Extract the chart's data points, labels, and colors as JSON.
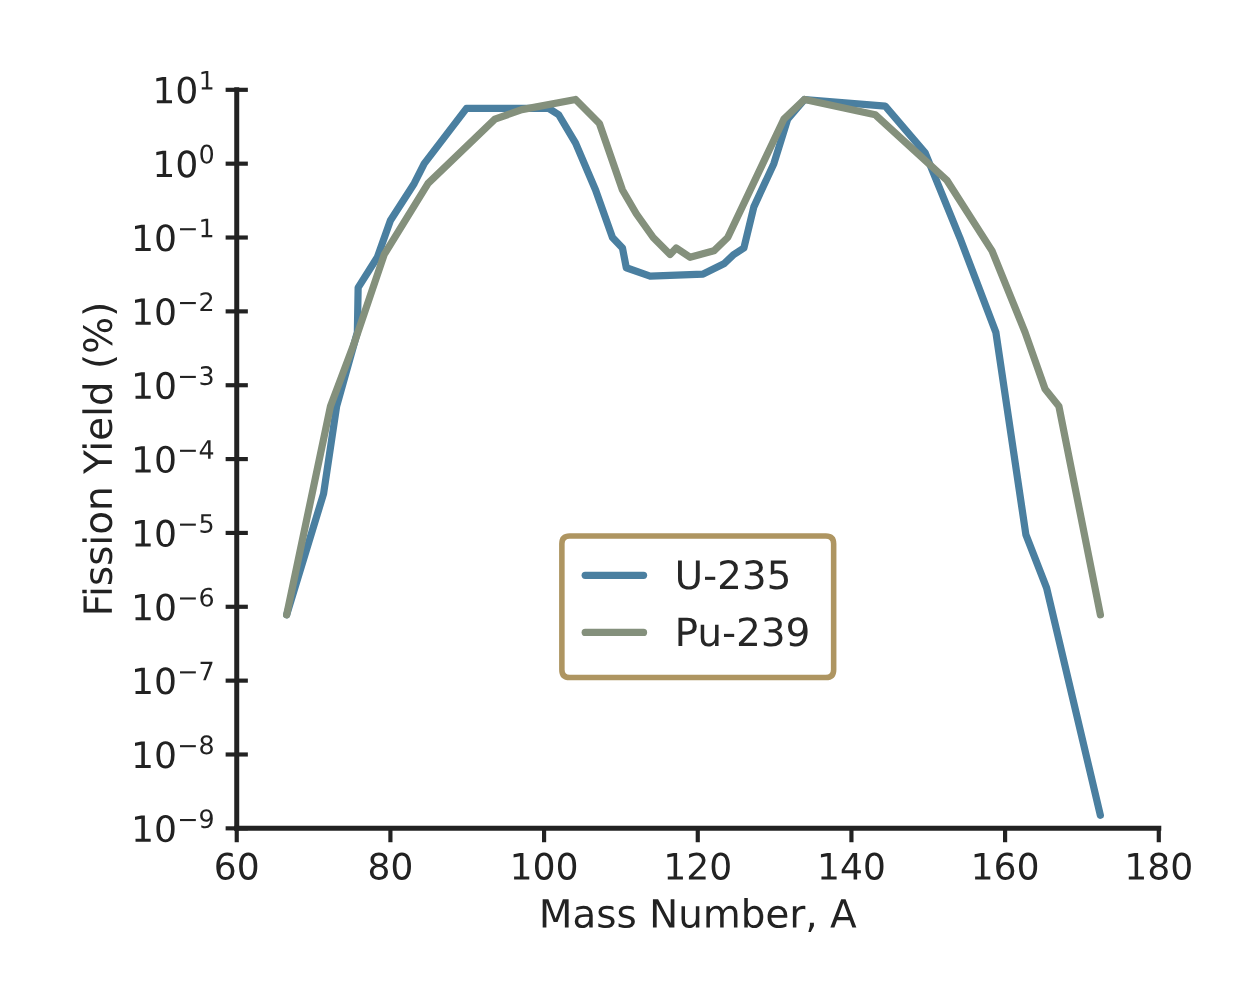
{
  "chart_data": {
    "type": "line",
    "xlabel": "Mass Number, A",
    "ylabel": "Fission Yield (%)",
    "log": "y",
    "xlim": [
      60,
      180
    ],
    "xticks": [
      60,
      80,
      100,
      120,
      140,
      160,
      180
    ],
    "ylim": [
      1e-09,
      10
    ],
    "yticks": [
      {
        "value": 1e-09,
        "label": "10$^{−9}$"
      },
      {
        "value": 1e-08,
        "label": "10$^{−8}$"
      },
      {
        "value": 1e-07,
        "label": "10$^{−7}$"
      },
      {
        "value": 1e-06,
        "label": "10$^{−6}$"
      },
      {
        "value": 1e-05,
        "label": "10$^{−5}$"
      },
      {
        "value": 0.0001,
        "label": "10$^{−4}$"
      },
      {
        "value": 0.001,
        "label": "10$^{−3}$"
      },
      {
        "value": 0.01,
        "label": "10$^{−2}$"
      },
      {
        "value": 0.1,
        "label": "10$^{−1}$"
      },
      {
        "value": 1,
        "label": "10$^{0}$"
      },
      {
        "value": 10,
        "label": "10$^{1}$"
      }
    ],
    "grid": false,
    "legend": "center",
    "marker": "none",
    "line_style": "solid",
    "series": [
      {
        "name": "U-235",
        "color": "#4a7fa0",
        "x": [
          66.5,
          71.3,
          73.0,
          75.7,
          75.8,
          78.3,
          80.0,
          83.1,
          84.4,
          89.9,
          100.6,
          101.9,
          104.1,
          106.7,
          108.9,
          110.2,
          110.7,
          113.8,
          120.7,
          123.4,
          124.7,
          126.0,
          127.3,
          129.9,
          131.7,
          133.9,
          144.4,
          149.6,
          154.1,
          158.8,
          162.7,
          165.4,
          172.4
        ],
        "values": [
          7.8e-07,
          3.4e-05,
          0.00052,
          0.0052,
          0.021,
          0.054,
          0.17,
          0.54,
          1.0,
          5.6,
          5.6,
          4.6,
          1.9,
          0.44,
          0.1,
          0.072,
          0.039,
          0.03,
          0.032,
          0.044,
          0.059,
          0.072,
          0.26,
          1.0,
          4.0,
          7.4,
          6.0,
          1.4,
          0.1,
          0.0052,
          9.5e-06,
          1.8e-06,
          1.5e-09
        ]
      },
      {
        "name": "Pu-239",
        "color": "#84907c",
        "x": [
          66.5,
          72.2,
          75.2,
          79.2,
          84.9,
          93.6,
          97.1,
          104.1,
          107.2,
          110.2,
          112.0,
          114.2,
          116.4,
          117.2,
          119.0,
          122.1,
          123.9,
          131.2,
          133.9,
          143.1,
          152.4,
          158.3,
          162.6,
          165.2,
          167.0,
          172.4
        ],
        "values": [
          7.8e-07,
          0.00052,
          0.0035,
          0.059,
          0.54,
          4.0,
          5.4,
          7.4,
          3.5,
          0.44,
          0.21,
          0.1,
          0.059,
          0.072,
          0.054,
          0.066,
          0.1,
          4.0,
          7.4,
          4.6,
          0.6,
          0.066,
          0.0052,
          0.00089,
          0.00052,
          7.8e-07
        ]
      }
    ]
  }
}
